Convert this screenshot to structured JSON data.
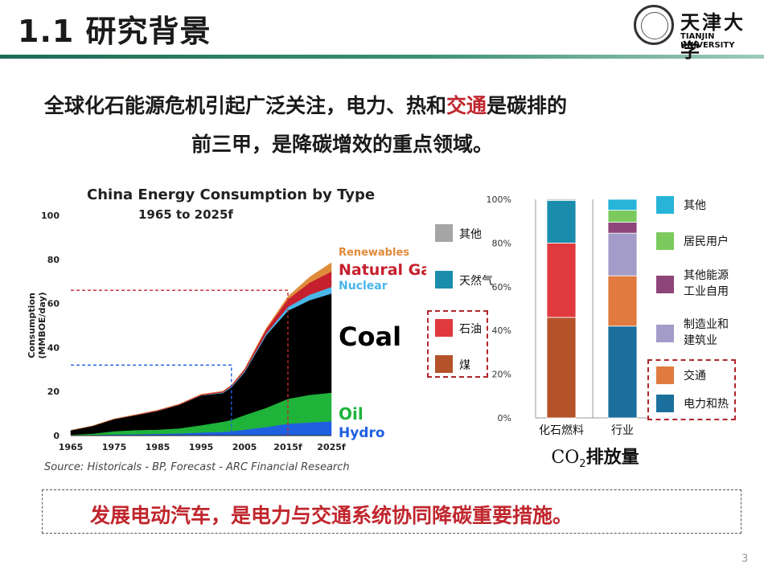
{
  "slide": {
    "title": "1.1 研究背景",
    "page_number": "3"
  },
  "logo": {
    "name": "天津大学",
    "subtitle": "TIANJIN UNIVERSITY"
  },
  "headline": {
    "line1_part1": "全球化石能源危机引起广泛关注，电力、热和",
    "line1_highlight": "交通",
    "line1_part2": "是碳排的",
    "line2": "前三甲，是降碳增效的重点领域。"
  },
  "colors": {
    "title_bar": "#2e7d64",
    "highlight_red": "#c0262d",
    "coal": "#000000",
    "oil": "#1fb33a",
    "hydro": "#1f5fe0",
    "nuclear": "#49b6ea",
    "natural_gas": "#c6202e",
    "renewables": "#e08b3a"
  },
  "area_chart": {
    "chart_data": {
      "type": "area",
      "title": "China Energy Consumption by Type",
      "subtitle": "1965 to 2025f",
      "ylabel": "Consumption (MMBOE/day)",
      "x_ticks": [
        "1965",
        "1975",
        "1985",
        "1995",
        "2005",
        "2015f",
        "2025f"
      ],
      "y_ticks": [
        "0",
        "20",
        "40",
        "60",
        "80",
        "100"
      ],
      "ylim": [
        0,
        100
      ],
      "xlim": [
        1965,
        2025
      ],
      "x": [
        1965,
        1970,
        1975,
        1980,
        1985,
        1990,
        1995,
        2000,
        2002,
        2005,
        2010,
        2015,
        2020,
        2025
      ],
      "series": [
        {
          "name": "Hydro",
          "color": "#1f5fe0",
          "values": [
            0.2,
            0.3,
            0.5,
            0.6,
            0.8,
            1.0,
            1.4,
            1.7,
            2.0,
            2.7,
            3.9,
            5.4,
            6.0,
            6.5
          ]
        },
        {
          "name": "Oil",
          "color": "#1fb33a",
          "values": [
            0.2,
            0.6,
            1.5,
            1.9,
            1.9,
            2.3,
            3.3,
            4.6,
            5.1,
            6.6,
            8.7,
            11.3,
            12.5,
            13.0
          ]
        },
        {
          "name": "Coal",
          "color": "#000000",
          "values": [
            2.0,
            3.5,
            5.5,
            6.8,
            8.5,
            10.7,
            13.5,
            13.0,
            14.8,
            19.4,
            33.0,
            40.0,
            43.0,
            45.0
          ]
        },
        {
          "name": "Nuclear",
          "color": "#49b6ea",
          "values": [
            0,
            0,
            0,
            0,
            0,
            0,
            0.1,
            0.3,
            0.4,
            0.5,
            0.8,
            1.7,
            2.5,
            3.0
          ]
        },
        {
          "name": "Natural Gas",
          "color": "#c6202e",
          "values": [
            0,
            0,
            0.1,
            0.2,
            0.3,
            0.3,
            0.4,
            0.5,
            0.6,
            0.9,
            1.9,
            3.5,
            5.5,
            7.0
          ]
        },
        {
          "name": "Renewables",
          "color": "#e08b3a",
          "values": [
            0,
            0,
            0,
            0,
            0,
            0,
            0,
            0,
            0,
            0.1,
            0.4,
            1.2,
            2.5,
            4.0
          ]
        }
      ],
      "reference_lines": [
        {
          "x": 2002,
          "y": 32
        },
        {
          "x": 2015,
          "y": 66
        }
      ],
      "legend": "inline-right",
      "source": "Source: Historicals - BP, Forecast - ARC Financial Research"
    }
  },
  "co2_chart": {
    "chart_data": {
      "type": "bar",
      "stacked": true,
      "categories": [
        "化石燃料",
        "行业"
      ],
      "y_ticks": [
        "0%",
        "20%",
        "40%",
        "60%",
        "80%",
        "100%"
      ],
      "ylim": [
        0,
        100
      ],
      "xlabel_prefix": "CO",
      "xlabel_sub": "2",
      "xlabel_suffix": "排放量",
      "series": [
        {
          "name": "煤",
          "color": "#b5522a",
          "values": [
            46,
            0
          ]
        },
        {
          "name": "石油",
          "color": "#e03a3e",
          "values": [
            34,
            0
          ]
        },
        {
          "name": "天然气",
          "color": "#1b8dac",
          "values": [
            19.5,
            0
          ]
        },
        {
          "name": "其他",
          "color": "#a5a5a5",
          "values": [
            0.5,
            0
          ]
        },
        {
          "name": "电力和热",
          "color": "#1a6f9c",
          "values": [
            0,
            42
          ]
        },
        {
          "name": "交通",
          "color": "#e07a3f",
          "values": [
            0,
            23
          ]
        },
        {
          "name": "制造业和建筑业",
          "color": "#a39cc8",
          "values": [
            0,
            19.5
          ]
        },
        {
          "name": "其他能源工业自用",
          "color": "#8e4579",
          "values": [
            0,
            5
          ]
        },
        {
          "name": "居民用户",
          "color": "#7cca5e",
          "values": [
            0,
            5.5
          ]
        },
        {
          "name": "其他",
          "color": "#26b5d9",
          "values": [
            0,
            5
          ]
        }
      ],
      "grid": false
    },
    "legend_left": [
      {
        "label": "其他",
        "color": "#a5a5a5"
      },
      {
        "label": "天然气",
        "color": "#1b8dac"
      },
      {
        "label": "石油",
        "color": "#e03a3e"
      },
      {
        "label": "煤",
        "color": "#b5522a"
      }
    ],
    "legend_right": [
      {
        "label": "其他",
        "color": "#26b5d9"
      },
      {
        "label": "居民用户",
        "color": "#7cca5e"
      },
      {
        "label": "其他能源",
        "label2": "工业自用",
        "color": "#8e4579"
      },
      {
        "label": "制造业和",
        "label2": "建筑业",
        "color": "#a39cc8"
      },
      {
        "label": "交通",
        "color": "#e07a3f"
      },
      {
        "label": "电力和热",
        "color": "#1a6f9c"
      }
    ]
  },
  "conclusion": "发展电动汽车，是电力与交通系统协同降碳重要措施。"
}
